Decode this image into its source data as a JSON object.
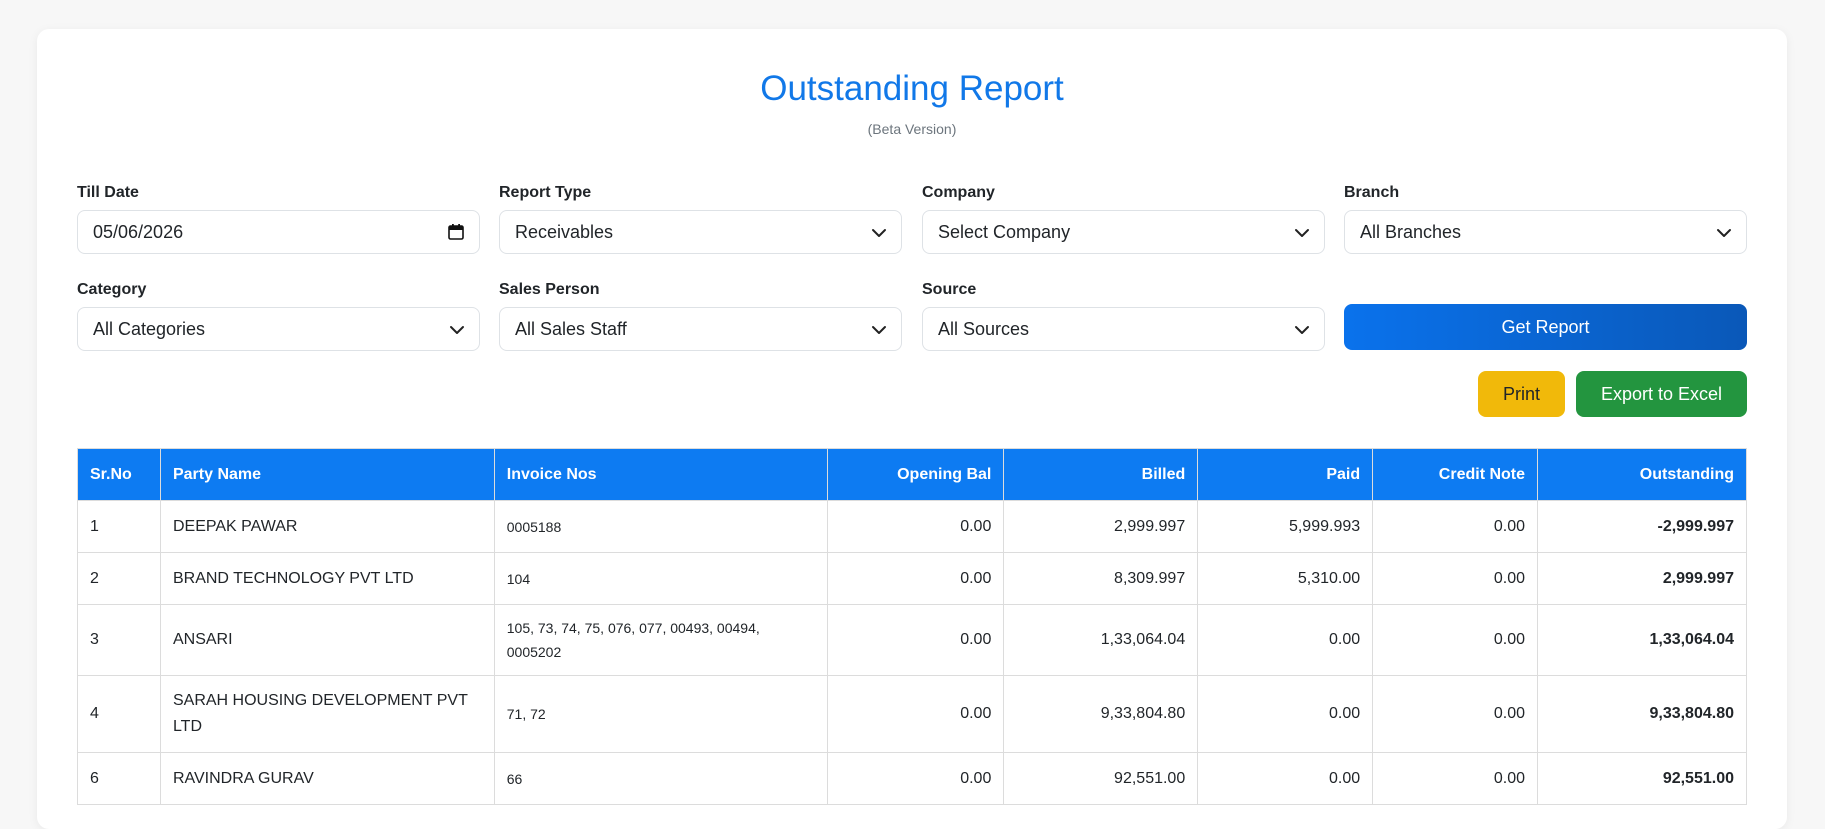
{
  "header": {
    "title": "Outstanding Report",
    "subtitle": "(Beta Version)"
  },
  "filters": {
    "till_date": {
      "label": "Till Date",
      "value": "05/06/2026"
    },
    "report_type": {
      "label": "Report Type",
      "value": "Receivables"
    },
    "company": {
      "label": "Company",
      "value": "Select Company"
    },
    "branch": {
      "label": "Branch",
      "value": "All Branches"
    },
    "category": {
      "label": "Category",
      "value": "All Categories"
    },
    "sales_person": {
      "label": "Sales Person",
      "value": "All Sales Staff"
    },
    "source": {
      "label": "Source",
      "value": "All Sources"
    }
  },
  "actions": {
    "get_report": "Get Report",
    "print": "Print",
    "export_excel": "Export to Excel"
  },
  "colors": {
    "accent": "#0d7bf2",
    "title": "#1178e8",
    "print": "#f1b90a",
    "excel": "#23953f",
    "paid": "#1e8a4e",
    "credit": "#dc3545"
  },
  "table": {
    "columns": [
      "Sr.No",
      "Party Name",
      "Invoice Nos",
      "Opening Bal",
      "Billed",
      "Paid",
      "Credit Note",
      "Outstanding"
    ],
    "rows": [
      {
        "sr": "1",
        "party": "DEEPAK PAWAR",
        "invoices": "0005188",
        "opening": "0.00",
        "billed": "2,999.997",
        "paid": "5,999.993",
        "credit": "0.00",
        "outstanding": "-2,999.997"
      },
      {
        "sr": "2",
        "party": "BRAND TECHNOLOGY PVT LTD",
        "invoices": "104",
        "opening": "0.00",
        "billed": "8,309.997",
        "paid": "5,310.00",
        "credit": "0.00",
        "outstanding": "2,999.997"
      },
      {
        "sr": "3",
        "party": "ANSARI",
        "invoices": "105, 73, 74, 75, 076, 077, 00493, 00494, 0005202",
        "opening": "0.00",
        "billed": "1,33,064.04",
        "paid": "0.00",
        "credit": "0.00",
        "outstanding": "1,33,064.04"
      },
      {
        "sr": "4",
        "party": "SARAH HOUSING DEVELOPMENT PVT LTD",
        "invoices": "71, 72",
        "opening": "0.00",
        "billed": "9,33,804.80",
        "paid": "0.00",
        "credit": "0.00",
        "outstanding": "9,33,804.80"
      },
      {
        "sr": "6",
        "party": "RAVINDRA GURAV",
        "invoices": "66",
        "opening": "0.00",
        "billed": "92,551.00",
        "paid": "0.00",
        "credit": "0.00",
        "outstanding": "92,551.00"
      }
    ]
  }
}
